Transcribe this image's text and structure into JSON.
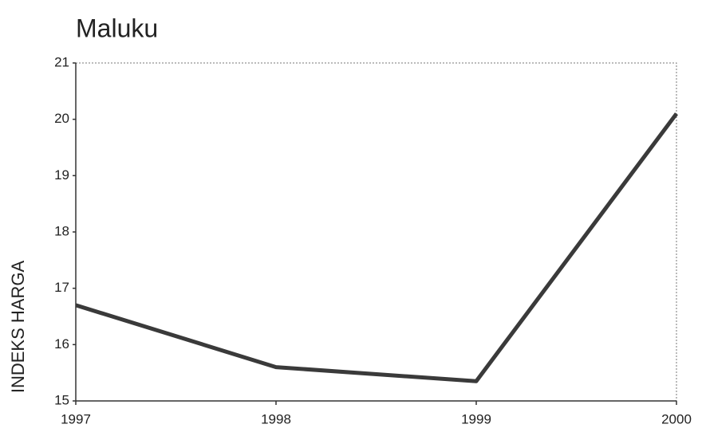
{
  "chart_data": {
    "type": "line",
    "title": "Maluku",
    "y_label": "INDEKS HARGA",
    "x": [
      1997,
      1998,
      1999,
      2000
    ],
    "series": [
      {
        "name": "Maluku",
        "color": "#3a3a3a",
        "values": [
          16.7,
          15.6,
          15.35,
          20.1
        ]
      }
    ],
    "xlim": [
      1997,
      2000
    ],
    "xticks": [
      1997,
      1998,
      1999,
      2000
    ],
    "ylim": [
      15,
      21
    ],
    "yticks": [
      15,
      16,
      17,
      18,
      19,
      20,
      21
    ]
  }
}
